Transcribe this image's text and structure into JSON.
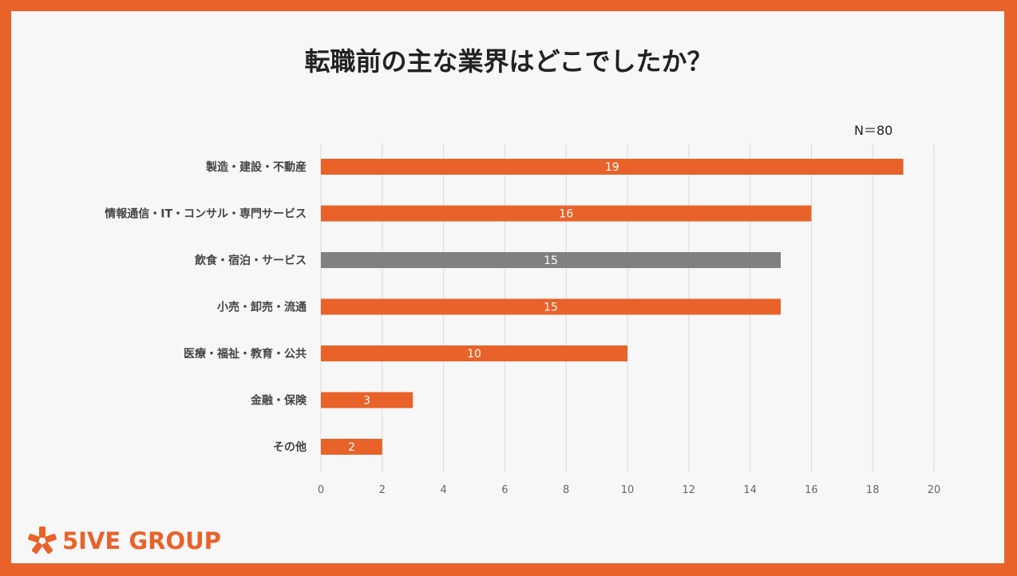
{
  "title": "転職前の主な業界はどこでしたか？",
  "sample_size": "N＝80",
  "brand": {
    "logo_text": "5IVE GROUP",
    "accent_color": "#E8622A"
  },
  "chart_data": {
    "type": "bar",
    "orientation": "horizontal",
    "title": "転職前の主な業界はどこでしたか？",
    "categories": [
      "製造・建設・不動産",
      "情報通信・IT・コンサル・専門サービス",
      "飲食・宿泊・サービス",
      "小売・卸売・流通",
      "医療・福祉・教育・公共",
      "金融・保険",
      "その他"
    ],
    "values": [
      19,
      16,
      15,
      15,
      10,
      3,
      2
    ],
    "bar_colors": [
      "#E8622A",
      "#E8622A",
      "#808080",
      "#E8622A",
      "#E8622A",
      "#E8622A",
      "#E8622A"
    ],
    "xlim": [
      0,
      20
    ],
    "xticks": [
      0,
      2,
      4,
      6,
      8,
      10,
      12,
      14,
      16,
      18,
      20
    ],
    "grid": true,
    "xlabel": "",
    "ylabel": ""
  }
}
